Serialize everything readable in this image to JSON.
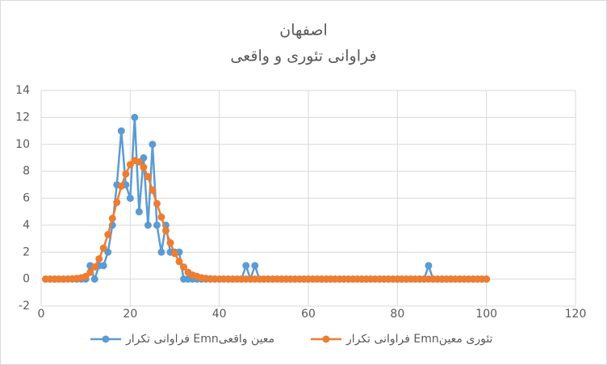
{
  "chart_data": {
    "type": "scatter-line",
    "title": "اصفهان",
    "subtitle": "فراوانی تئوری و واقعی",
    "x": [
      1,
      2,
      3,
      4,
      5,
      6,
      7,
      8,
      9,
      10,
      11,
      12,
      13,
      14,
      15,
      16,
      17,
      18,
      19,
      20,
      21,
      22,
      23,
      24,
      25,
      26,
      27,
      28,
      29,
      30,
      31,
      32,
      33,
      34,
      35,
      36,
      37,
      38,
      39,
      40,
      41,
      42,
      43,
      44,
      45,
      46,
      47,
      48,
      49,
      50,
      51,
      52,
      53,
      54,
      55,
      56,
      57,
      58,
      59,
      60,
      61,
      62,
      63,
      64,
      65,
      66,
      67,
      68,
      69,
      70,
      71,
      72,
      73,
      74,
      75,
      76,
      77,
      78,
      79,
      80,
      81,
      82,
      83,
      84,
      85,
      86,
      87,
      88,
      89,
      90,
      91,
      92,
      93,
      94,
      95,
      96,
      97,
      98,
      99,
      100
    ],
    "series": [
      {
        "name": "فراوانی تکرار Emnمعین واقعی",
        "color": "#5b9bd5",
        "values": [
          0,
          0,
          0,
          0,
          0,
          0,
          0,
          0,
          0,
          0,
          1,
          0,
          1,
          1,
          2,
          4,
          7,
          11,
          7,
          6,
          12,
          5,
          9,
          4,
          10,
          4,
          2,
          4,
          2,
          2,
          2,
          0,
          0,
          0,
          0,
          0,
          0,
          0,
          0,
          0,
          0,
          0,
          0,
          0,
          0,
          1,
          0,
          1,
          0,
          0,
          0,
          0,
          0,
          0,
          0,
          0,
          0,
          0,
          0,
          0,
          0,
          0,
          0,
          0,
          0,
          0,
          0,
          0,
          0,
          0,
          0,
          0,
          0,
          0,
          0,
          0,
          0,
          0,
          0,
          0,
          0,
          0,
          0,
          0,
          0,
          0,
          1,
          0,
          0,
          0,
          0,
          0,
          0,
          0,
          0,
          0,
          0,
          0,
          0,
          0
        ]
      },
      {
        "name": "فراوانی تکرار Emnتئوری معین",
        "color": "#ed7d31",
        "values": [
          0,
          0,
          0,
          0,
          0,
          0.01,
          0.02,
          0.05,
          0.1,
          0.2,
          0.5,
          0.9,
          1.5,
          2.3,
          3.3,
          4.5,
          5.7,
          6.9,
          7.8,
          8.5,
          8.8,
          8.7,
          8.3,
          7.6,
          6.6,
          5.6,
          4.6,
          3.6,
          2.7,
          1.9,
          1.3,
          0.9,
          0.5,
          0.3,
          0.2,
          0.1,
          0.05,
          0.02,
          0.01,
          0,
          0,
          0,
          0,
          0,
          0,
          0,
          0,
          0,
          0,
          0,
          0,
          0,
          0,
          0,
          0,
          0,
          0,
          0,
          0,
          0,
          0,
          0,
          0,
          0,
          0,
          0,
          0,
          0,
          0,
          0,
          0,
          0,
          0,
          0,
          0,
          0,
          0,
          0,
          0,
          0,
          0,
          0,
          0,
          0,
          0,
          0,
          0,
          0,
          0,
          0,
          0,
          0,
          0,
          0,
          0,
          0,
          0,
          0,
          0,
          0
        ]
      }
    ],
    "xlim": [
      0,
      120
    ],
    "xticks": [
      0,
      20,
      40,
      60,
      80,
      100,
      120
    ],
    "ylim": [
      -2,
      14
    ],
    "yticks": [
      -2,
      0,
      2,
      4,
      6,
      8,
      10,
      12,
      14
    ],
    "grid": true,
    "legend": "bottom"
  }
}
